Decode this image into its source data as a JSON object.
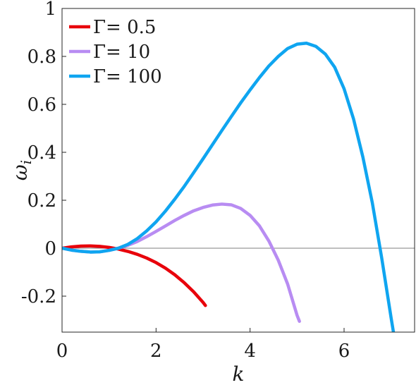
{
  "chart_data": {
    "type": "line",
    "xlabel": "k",
    "ylabel": "ω",
    "ylabel_subscript": "i",
    "xlim": [
      0,
      7.5
    ],
    "ylim": [
      -0.35,
      1.0
    ],
    "xticks": [
      0,
      2,
      4,
      6
    ],
    "xtick_labels": [
      "0",
      "2",
      "4",
      "6"
    ],
    "yticks": [
      -0.2,
      0,
      0.2,
      0.4,
      0.6,
      0.8,
      1
    ],
    "ytick_labels": [
      "-0.2",
      "0",
      "0.2",
      "0.4",
      "0.6",
      "0.8",
      "1"
    ],
    "reference_line_y": 0,
    "grid": false,
    "legend_position": "top-left",
    "series": [
      {
        "name": "Γ= 0.5",
        "color": "#e8000b",
        "x": [
          0,
          0.2,
          0.4,
          0.6,
          0.8,
          1.0,
          1.2,
          1.4,
          1.6,
          1.8,
          2.0,
          2.2,
          2.4,
          2.6,
          2.8,
          3.0,
          3.05
        ],
        "y": [
          0,
          0.0057,
          0.0089,
          0.0097,
          0.0077,
          0.0033,
          -0.0037,
          -0.0133,
          -0.0256,
          -0.041,
          -0.06,
          -0.0833,
          -0.111,
          -0.144,
          -0.182,
          -0.226,
          -0.239
        ]
      },
      {
        "name": "Γ= 10",
        "color": "#b88cf2",
        "x": [
          0,
          0.2,
          0.4,
          0.6,
          0.8,
          1.0,
          1.2,
          1.4,
          1.6,
          1.8,
          2.0,
          2.2,
          2.4,
          2.6,
          2.8,
          3.0,
          3.2,
          3.4,
          3.6,
          3.8,
          4.0,
          4.2,
          4.4,
          4.6,
          4.8,
          5.0,
          5.05
        ],
        "y": [
          0,
          -0.008,
          -0.013,
          -0.016,
          -0.015,
          -0.009,
          0,
          0.012,
          0.028,
          0.048,
          0.07,
          0.093,
          0.116,
          0.137,
          0.156,
          0.17,
          0.18,
          0.184,
          0.181,
          0.166,
          0.137,
          0.093,
          0.03,
          -0.05,
          -0.15,
          -0.28,
          -0.305
        ]
      },
      {
        "name": "Γ= 100",
        "color": "#0fa5f0",
        "x": [
          0,
          0.2,
          0.4,
          0.6,
          0.8,
          1.0,
          1.2,
          1.4,
          1.6,
          1.8,
          2.0,
          2.2,
          2.4,
          2.6,
          2.8,
          3.0,
          3.2,
          3.4,
          3.6,
          3.8,
          4.0,
          4.2,
          4.4,
          4.6,
          4.8,
          5.0,
          5.2,
          5.4,
          5.6,
          5.8,
          6.0,
          6.2,
          6.4,
          6.6,
          6.8,
          7.0,
          7.05
        ],
        "y": [
          0,
          -0.008,
          -0.013,
          -0.016,
          -0.015,
          -0.009,
          0,
          0.016,
          0.04,
          0.072,
          0.11,
          0.155,
          0.205,
          0.258,
          0.315,
          0.373,
          0.432,
          0.491,
          0.549,
          0.606,
          0.66,
          0.712,
          0.76,
          0.8,
          0.833,
          0.851,
          0.855,
          0.842,
          0.81,
          0.755,
          0.665,
          0.54,
          0.38,
          0.19,
          -0.04,
          -0.29,
          -0.35
        ]
      }
    ]
  }
}
